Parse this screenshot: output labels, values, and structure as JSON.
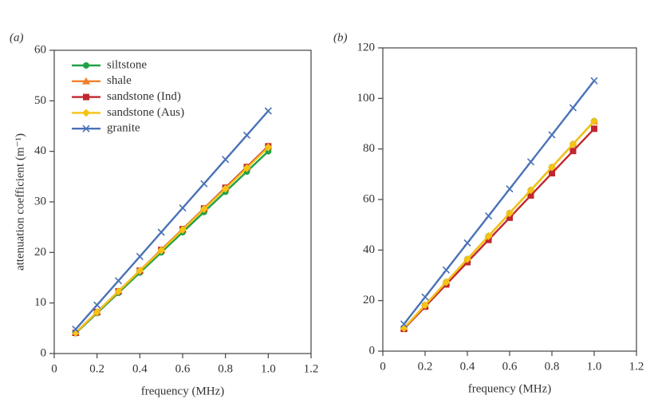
{
  "chart_data": [
    {
      "type": "line",
      "panel_label": "(a)",
      "x_label": "frequency (MHz)",
      "y_label": "attenuation coefficient (m⁻¹)",
      "x": [
        0.1,
        0.2,
        0.3,
        0.4,
        0.5,
        0.6,
        0.7,
        0.8,
        0.9,
        1.0
      ],
      "xlim": [
        0,
        1.2
      ],
      "xticks": [
        0,
        0.2,
        0.4,
        0.6,
        0.8,
        {
          "value": 1,
          "label": "1.0"
        },
        1.2
      ],
      "ylim": [
        0,
        60
      ],
      "yticks": [
        0,
        10,
        20,
        30,
        40,
        50,
        60
      ],
      "legend": "upper left",
      "series": [
        {
          "name": "siltstone",
          "color": "#21a146",
          "marker": "circle",
          "values": [
            4,
            8,
            12,
            16,
            20,
            24,
            28,
            32,
            36,
            40
          ]
        },
        {
          "name": "shale",
          "color": "#f07f2e",
          "marker": "triangle",
          "values": [
            4.1,
            8.2,
            12.3,
            16.4,
            20.5,
            24.6,
            28.7,
            32.8,
            36.9,
            41
          ]
        },
        {
          "name": "sandstone (Ind)",
          "color": "#c1272d",
          "marker": "square",
          "values": [
            4.1,
            8.2,
            12.3,
            16.4,
            20.5,
            24.6,
            28.7,
            32.8,
            36.9,
            41
          ]
        },
        {
          "name": "sandstone (Aus)",
          "color": "#f4c316",
          "marker": "diamond",
          "values": [
            4.1,
            8.2,
            12.3,
            16.4,
            20.4,
            24.5,
            28.6,
            32.6,
            36.7,
            40.8
          ]
        },
        {
          "name": "granite",
          "color": "#4a72b7",
          "marker": "x",
          "values": [
            4.8,
            9.6,
            14.4,
            19.2,
            24,
            28.8,
            33.6,
            38.4,
            43.2,
            48
          ]
        }
      ]
    },
    {
      "type": "line",
      "panel_label": "(b)",
      "x_label": "frequency (MHz)",
      "x": [
        0.1,
        0.2,
        0.3,
        0.4,
        0.5,
        0.6,
        0.7,
        0.8,
        0.9,
        1.0
      ],
      "xlim": [
        0,
        1.2
      ],
      "xticks": [
        0,
        0.2,
        0.4,
        0.6,
        0.8,
        {
          "value": 1,
          "label": "1.0"
        },
        1.2
      ],
      "ylim": [
        0,
        120
      ],
      "yticks": [
        0,
        20,
        40,
        60,
        80,
        100,
        120
      ],
      "series": [
        {
          "color": "#21a146",
          "marker": "circle",
          "values": [
            9.1,
            18.2,
            27.3,
            36.4,
            45.5,
            54.6,
            63.7,
            72.8,
            81.9,
            91
          ]
        },
        {
          "color": "#f07f2e",
          "marker": "triangle",
          "values": [
            9.1,
            18.2,
            27.3,
            36.4,
            45.5,
            54.6,
            63.7,
            72.8,
            81.9,
            91
          ]
        },
        {
          "color": "#c1272d",
          "marker": "square",
          "values": [
            8.8,
            17.6,
            26.4,
            35.2,
            44,
            52.8,
            61.6,
            70.4,
            79.2,
            88
          ]
        },
        {
          "color": "#f4c316",
          "marker": "diamond",
          "values": [
            9.1,
            18.2,
            27.3,
            36.4,
            45.5,
            54.6,
            63.7,
            72.8,
            81.9,
            91
          ]
        },
        {
          "color": "#4a72b7",
          "marker": "x",
          "values": [
            10.7,
            21.4,
            32.1,
            42.8,
            53.5,
            64.2,
            74.9,
            85.6,
            96.3,
            107
          ]
        }
      ]
    }
  ]
}
